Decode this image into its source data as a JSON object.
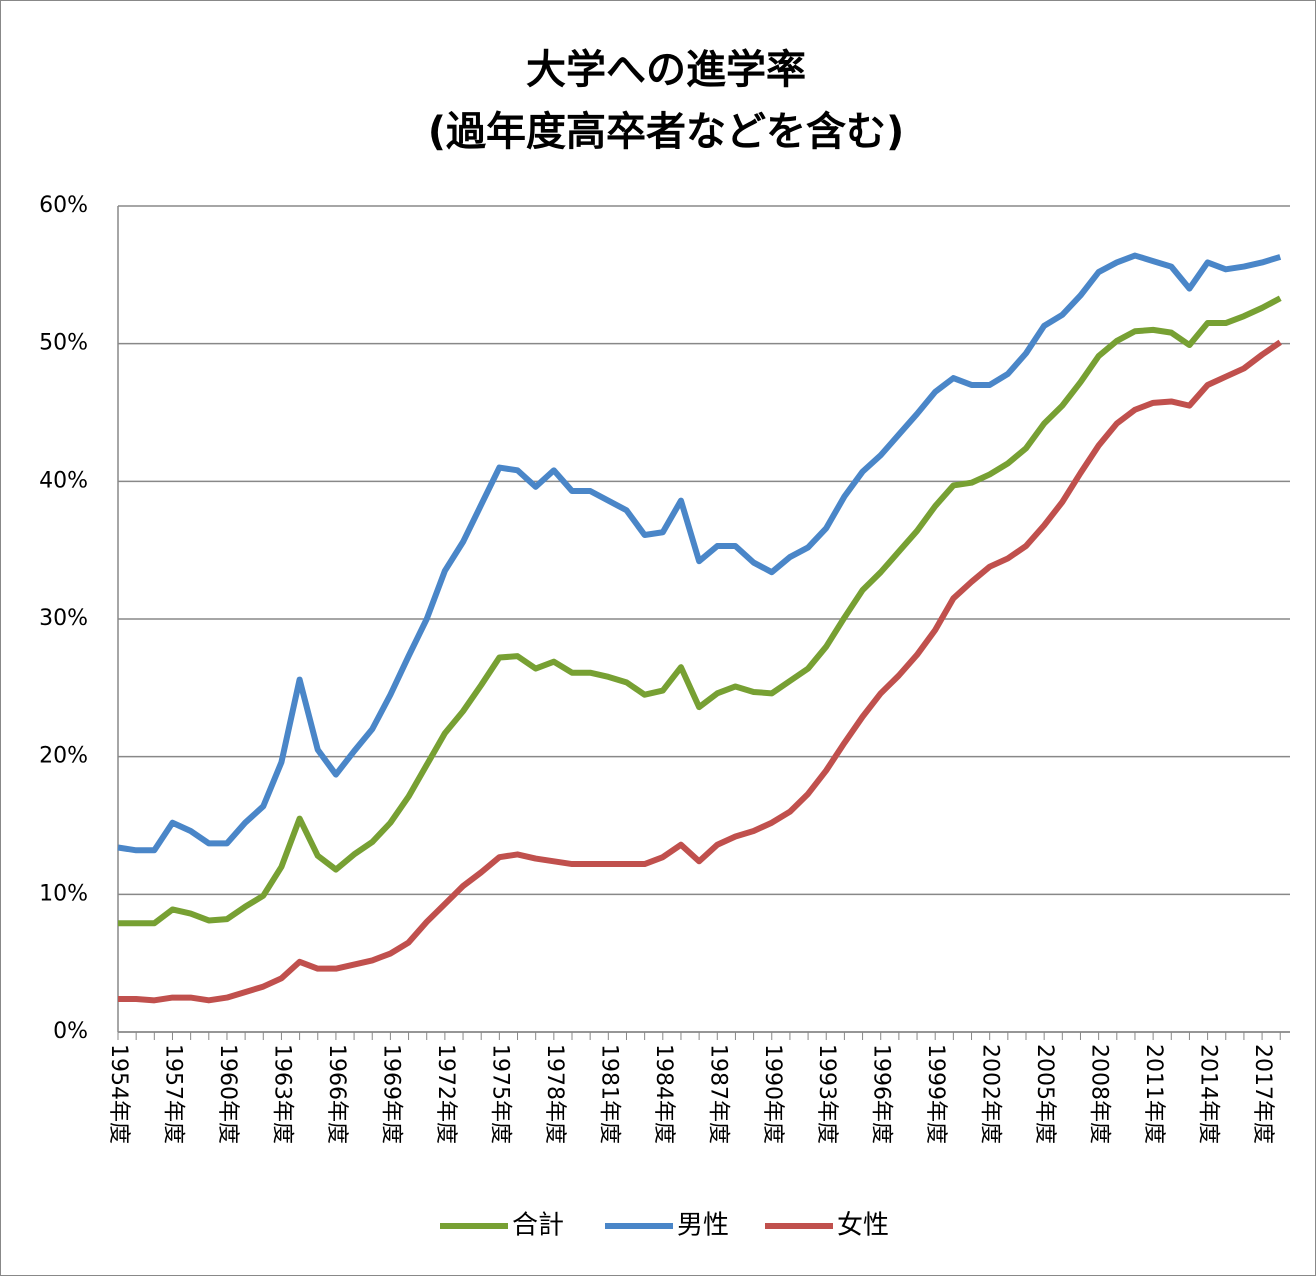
{
  "chart_data": {
    "type": "line",
    "title": "大学への進学率",
    "subtitle": "(過年度高卒者などを含む)",
    "categories": [
      "1954年度",
      null,
      null,
      "1957年度",
      null,
      null,
      "1960年度",
      null,
      null,
      "1963年度",
      null,
      null,
      "1966年度",
      null,
      null,
      "1969年度",
      null,
      null,
      "1972年度",
      null,
      null,
      "1975年度",
      null,
      null,
      "1978年度",
      null,
      null,
      "1981年度",
      null,
      null,
      "1984年度",
      null,
      null,
      "1987年度",
      null,
      null,
      "1990年度",
      null,
      null,
      "1993年度",
      null,
      null,
      "1996年度",
      null,
      null,
      "1999年度",
      null,
      null,
      "2002年度",
      null,
      null,
      "2005年度",
      null,
      null,
      "2008年度",
      null,
      null,
      "2011年度",
      null,
      null,
      "2014年度",
      null,
      null,
      "2017年度",
      null
    ],
    "series": [
      {
        "name": "合計",
        "color": "#77a033",
        "values": [
          7.9,
          7.9,
          7.9,
          8.9,
          8.6,
          8.1,
          8.2,
          9.1,
          9.9,
          12.0,
          15.5,
          12.8,
          11.8,
          12.9,
          13.8,
          15.2,
          17.1,
          19.4,
          21.7,
          23.3,
          25.2,
          27.2,
          27.3,
          26.4,
          26.9,
          26.1,
          26.1,
          25.8,
          25.4,
          24.5,
          24.8,
          26.5,
          23.6,
          24.6,
          25.1,
          24.7,
          24.6,
          25.5,
          26.4,
          28.0,
          30.1,
          32.1,
          33.4,
          34.9,
          36.4,
          38.2,
          39.7,
          39.9,
          40.5,
          41.3,
          42.4,
          44.2,
          45.5,
          47.2,
          49.1,
          50.2,
          50.9,
          51.0,
          50.8,
          49.9,
          51.5,
          51.5,
          52.0,
          52.6,
          53.3
        ]
      },
      {
        "name": "男性",
        "color": "#4a86c8",
        "values": [
          13.4,
          13.2,
          13.2,
          15.2,
          14.6,
          13.7,
          13.7,
          15.2,
          16.4,
          19.6,
          25.6,
          20.5,
          18.7,
          20.4,
          22.0,
          24.5,
          27.3,
          30.0,
          33.5,
          35.6,
          38.3,
          41.0,
          40.8,
          39.6,
          40.8,
          39.3,
          39.3,
          38.6,
          37.9,
          36.1,
          36.3,
          38.6,
          34.2,
          35.3,
          35.3,
          34.1,
          33.4,
          34.5,
          35.2,
          36.6,
          38.9,
          40.7,
          41.9,
          43.4,
          44.9,
          46.5,
          47.5,
          47.0,
          47.0,
          47.8,
          49.3,
          51.3,
          52.1,
          53.5,
          55.2,
          55.9,
          56.4,
          56.0,
          55.6,
          54.0,
          55.9,
          55.4,
          55.6,
          55.9,
          56.3
        ]
      },
      {
        "name": "女性",
        "color": "#c0504d",
        "values": [
          2.4,
          2.4,
          2.3,
          2.5,
          2.5,
          2.3,
          2.5,
          2.9,
          3.3,
          3.9,
          5.1,
          4.6,
          4.6,
          4.9,
          5.2,
          5.7,
          6.5,
          8.0,
          9.3,
          10.6,
          11.6,
          12.7,
          12.9,
          12.6,
          12.4,
          12.2,
          12.2,
          12.2,
          12.2,
          12.2,
          12.7,
          13.6,
          12.4,
          13.6,
          14.2,
          14.6,
          15.2,
          16.0,
          17.3,
          19.0,
          21.0,
          22.9,
          24.6,
          25.9,
          27.4,
          29.2,
          31.5,
          32.7,
          33.8,
          34.4,
          35.3,
          36.8,
          38.5,
          40.6,
          42.6,
          44.2,
          45.2,
          45.7,
          45.8,
          45.5,
          47.0,
          47.6,
          48.2,
          49.2,
          50.1
        ]
      }
    ],
    "ylim": [
      0,
      60
    ],
    "yticks": [
      {
        "value": 0,
        "label": "0%"
      },
      {
        "value": 10,
        "label": "10%"
      },
      {
        "value": 20,
        "label": "20%"
      },
      {
        "value": 30,
        "label": "30%"
      },
      {
        "value": 40,
        "label": "40%"
      },
      {
        "value": 50,
        "label": "50%"
      },
      {
        "value": 60,
        "label": "60%"
      }
    ],
    "grid": true,
    "legend": "bottom"
  }
}
